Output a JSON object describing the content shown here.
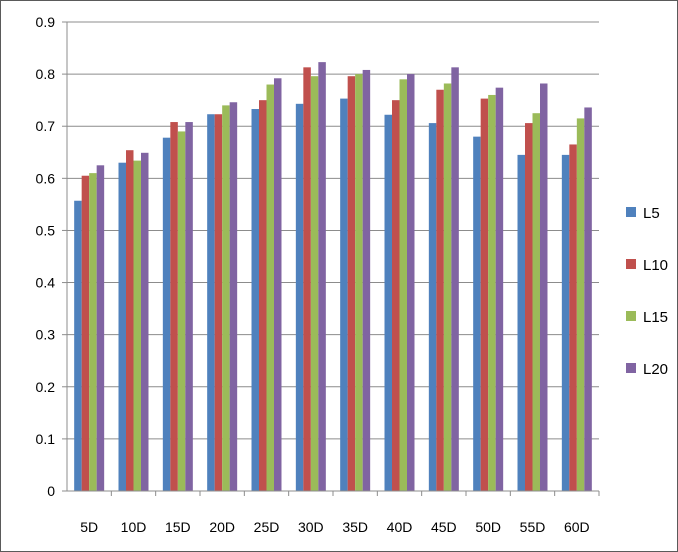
{
  "chart_data": {
    "type": "bar",
    "title": "",
    "xlabel": "",
    "ylabel": "",
    "categories": [
      "5D",
      "10D",
      "15D",
      "20D",
      "25D",
      "30D",
      "35D",
      "40D",
      "45D",
      "50D",
      "55D",
      "60D"
    ],
    "ylim": [
      0,
      0.9
    ],
    "yticks": [
      "0",
      "0.1",
      "0.2",
      "0.3",
      "0.4",
      "0.5",
      "0.6",
      "0.7",
      "0.8",
      "0.9"
    ],
    "grid": "horizontal",
    "legend_position": "right",
    "series": [
      {
        "name": "L5",
        "color": "#4F81BD",
        "values": [
          0.557,
          0.63,
          0.678,
          0.723,
          0.733,
          0.743,
          0.753,
          0.722,
          0.706,
          0.68,
          0.645,
          0.645
        ]
      },
      {
        "name": "L10",
        "color": "#C0504D",
        "values": [
          0.605,
          0.654,
          0.708,
          0.723,
          0.75,
          0.813,
          0.796,
          0.75,
          0.77,
          0.753,
          0.706,
          0.665
        ]
      },
      {
        "name": "L15",
        "color": "#9BBB59",
        "values": [
          0.61,
          0.634,
          0.69,
          0.74,
          0.78,
          0.796,
          0.8,
          0.79,
          0.782,
          0.76,
          0.725,
          0.715
        ]
      },
      {
        "name": "L20",
        "color": "#8064A2",
        "values": [
          0.625,
          0.649,
          0.708,
          0.746,
          0.792,
          0.823,
          0.808,
          0.8,
          0.813,
          0.774,
          0.782,
          0.736
        ]
      }
    ]
  }
}
